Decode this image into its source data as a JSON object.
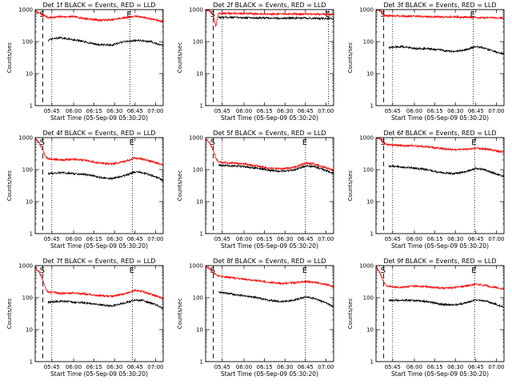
{
  "colors": {
    "events": "#000000",
    "lld": "#ff0000",
    "axis": "#000000"
  },
  "chart_data": [
    {
      "type": "line",
      "title": "Det 1f BLACK = Events, RED = LLD",
      "xlabel": "Start Time (05-Sep-09 05:30:20)",
      "ylabel": "Counts/sec",
      "yscale": "log",
      "ylim": [
        1,
        1000
      ],
      "y_ticks": [
        "1",
        "10",
        "100",
        "1000"
      ],
      "xlim": [
        0,
        100
      ],
      "x_tick_positions": [
        13,
        30,
        46,
        62,
        78,
        94
      ],
      "x_ticks": [
        "05:45",
        "06:00",
        "06:15",
        "06:30",
        "06:45",
        "07:00"
      ],
      "markers": [
        {
          "label": "S",
          "x": 6,
          "style": "dash"
        },
        {
          "label": "E",
          "x": 74,
          "style": "dot"
        }
      ],
      "extra_dotted_x": [
        13
      ],
      "series": [
        {
          "x": [
            0,
            2,
            5,
            8,
            10,
            15,
            20,
            30,
            40,
            50,
            60,
            70,
            80,
            90,
            100
          ],
          "y": [
            900,
            800,
            700,
            650,
            550,
            580,
            600,
            600,
            520,
            470,
            480,
            560,
            620,
            520,
            420
          ]
        },
        {
          "x": [
            10,
            15,
            20,
            30,
            40,
            50,
            60,
            70,
            80,
            90,
            100
          ],
          "y": [
            110,
            125,
            130,
            115,
            95,
            80,
            78,
            100,
            110,
            100,
            75
          ]
        }
      ]
    },
    {
      "type": "line",
      "title": "Det 2f BLACK = Events, RED = LLD",
      "xlabel": "Start Time (05-Sep-09 05:30:20)",
      "ylabel": "Counts/sec",
      "yscale": "log",
      "ylim": [
        1,
        1000
      ],
      "y_ticks": [
        "1",
        "10",
        "100",
        "1000"
      ],
      "xlim": [
        0,
        100
      ],
      "x_tick_positions": [
        13,
        30,
        46,
        62,
        78,
        94
      ],
      "x_ticks": [
        "05:45",
        "06:00",
        "06:15",
        "06:30",
        "06:45",
        "07:00"
      ],
      "markers": [
        {
          "label": "S",
          "x": 6,
          "style": "dash"
        },
        {
          "label": "E",
          "x": 96,
          "style": "dot"
        }
      ],
      "extra_dotted_x": [
        13
      ],
      "series": [
        {
          "x": [
            0,
            3,
            6,
            8,
            10,
            15,
            30,
            50,
            70,
            90,
            100
          ],
          "y": [
            1000,
            900,
            700,
            300,
            760,
            760,
            750,
            720,
            730,
            720,
            700
          ]
        },
        {
          "x": [
            10,
            15,
            30,
            50,
            70,
            90,
            100
          ],
          "y": [
            560,
            580,
            560,
            540,
            540,
            530,
            520
          ]
        }
      ]
    },
    {
      "type": "line",
      "title": "Det 3f BLACK = Events, RED = LLD",
      "xlabel": "Start Time (05-Sep-09 05:30:20)",
      "ylabel": "Counts/sec",
      "yscale": "log",
      "ylim": [
        1,
        1000
      ],
      "y_ticks": [
        "1",
        "10",
        "100",
        "1000"
      ],
      "xlim": [
        0,
        100
      ],
      "x_tick_positions": [
        13,
        30,
        46,
        62,
        78,
        94
      ],
      "x_ticks": [
        "05:45",
        "06:00",
        "06:15",
        "06:30",
        "06:45",
        "07:00"
      ],
      "markers": [
        {
          "label": "S",
          "x": 6,
          "style": "dash"
        },
        {
          "label": "E",
          "x": 76,
          "style": "dot"
        }
      ],
      "extra_dotted_x": [
        13
      ],
      "series": [
        {
          "x": [
            0,
            4,
            6,
            10,
            20,
            40,
            60,
            80,
            100
          ],
          "y": [
            1000,
            900,
            650,
            640,
            630,
            600,
            590,
            560,
            540
          ]
        },
        {
          "x": [
            10,
            20,
            30,
            40,
            50,
            60,
            70,
            78,
            85,
            95,
            100
          ],
          "y": [
            65,
            70,
            62,
            60,
            55,
            48,
            55,
            70,
            62,
            45,
            42
          ]
        }
      ]
    },
    {
      "type": "line",
      "title": "Det 4f BLACK = Events, RED = LLD",
      "xlabel": "Start Time (05-Sep-09 05:30:20)",
      "ylabel": "Counts/sec",
      "yscale": "log",
      "ylim": [
        1,
        1000
      ],
      "y_ticks": [
        "1",
        "10",
        "100",
        "1000"
      ],
      "xlim": [
        0,
        100
      ],
      "x_tick_positions": [
        13,
        30,
        46,
        62,
        78,
        94
      ],
      "x_ticks": [
        "05:45",
        "06:00",
        "06:15",
        "06:30",
        "06:45",
        "07:00"
      ],
      "markers": [
        {
          "label": "S",
          "x": 6,
          "style": "dash"
        },
        {
          "label": "E",
          "x": 76,
          "style": "dot"
        }
      ],
      "extra_dotted_x": [
        13
      ],
      "series": [
        {
          "x": [
            0,
            3,
            6,
            8,
            10,
            20,
            30,
            40,
            50,
            60,
            70,
            78,
            85,
            95,
            100
          ],
          "y": [
            900,
            700,
            400,
            260,
            220,
            200,
            210,
            190,
            160,
            150,
            180,
            230,
            210,
            160,
            140
          ]
        },
        {
          "x": [
            10,
            20,
            30,
            40,
            50,
            60,
            70,
            78,
            85,
            95,
            100
          ],
          "y": [
            75,
            80,
            75,
            70,
            58,
            52,
            65,
            85,
            78,
            58,
            45
          ]
        }
      ]
    },
    {
      "type": "line",
      "title": "Det 5f BLACK = Events, RED = LLD",
      "xlabel": "Start Time (05-Sep-09 05:30:20)",
      "ylabel": "Counts/sec",
      "yscale": "log",
      "ylim": [
        1,
        1000
      ],
      "y_ticks": [
        "1",
        "10",
        "100",
        "1000"
      ],
      "xlim": [
        0,
        100
      ],
      "x_tick_positions": [
        13,
        30,
        46,
        62,
        78,
        94
      ],
      "x_ticks": [
        "05:45",
        "06:00",
        "06:15",
        "06:30",
        "06:45",
        "07:00"
      ],
      "markers": [
        {
          "label": "S",
          "x": 6,
          "style": "dash"
        },
        {
          "label": "E",
          "x": 78,
          "style": "dot"
        }
      ],
      "extra_dotted_x": [
        13
      ],
      "series": [
        {
          "x": [
            0,
            3,
            6,
            8,
            10,
            20,
            30,
            40,
            50,
            60,
            70,
            78,
            85,
            95,
            100
          ],
          "y": [
            900,
            700,
            400,
            220,
            170,
            160,
            150,
            130,
            110,
            105,
            120,
            160,
            150,
            110,
            95
          ]
        },
        {
          "x": [
            10,
            20,
            30,
            40,
            50,
            60,
            70,
            78,
            85,
            95,
            100
          ],
          "y": [
            140,
            130,
            125,
            110,
            95,
            88,
            100,
            130,
            125,
            90,
            75
          ]
        }
      ]
    },
    {
      "type": "line",
      "title": "Det 6f BLACK = Events, RED = LLD",
      "xlabel": "Start Time (05-Sep-09 05:30:20)",
      "ylabel": "Counts/sec",
      "yscale": "log",
      "ylim": [
        1,
        1000
      ],
      "y_ticks": [
        "1",
        "10",
        "100",
        "1000"
      ],
      "xlim": [
        0,
        100
      ],
      "x_tick_positions": [
        13,
        30,
        46,
        62,
        78,
        94
      ],
      "x_ticks": [
        "05:45",
        "06:00",
        "06:15",
        "06:30",
        "06:45",
        "07:00"
      ],
      "markers": [
        {
          "label": "S",
          "x": 6,
          "style": "dash"
        },
        {
          "label": "E",
          "x": 77,
          "style": "dot"
        }
      ],
      "extra_dotted_x": [
        13
      ],
      "series": [
        {
          "x": [
            0,
            4,
            6,
            10,
            20,
            30,
            40,
            50,
            60,
            70,
            78,
            85,
            95,
            100
          ],
          "y": [
            1000,
            900,
            650,
            600,
            560,
            550,
            520,
            460,
            420,
            430,
            470,
            440,
            380,
            350
          ]
        },
        {
          "x": [
            10,
            20,
            30,
            40,
            50,
            60,
            70,
            78,
            85,
            95,
            100
          ],
          "y": [
            130,
            120,
            110,
            100,
            80,
            75,
            85,
            110,
            100,
            70,
            60
          ]
        }
      ]
    },
    {
      "type": "line",
      "title": "Det 7f BLACK = Events, RED = LLD",
      "xlabel": "Start Time (05-Sep-09 05:30:20)",
      "ylabel": "Counts/sec",
      "yscale": "log",
      "ylim": [
        1,
        1000
      ],
      "y_ticks": [
        "1",
        "10",
        "100",
        "1000"
      ],
      "xlim": [
        0,
        100
      ],
      "x_tick_positions": [
        13,
        30,
        46,
        62,
        78,
        94
      ],
      "x_ticks": [
        "05:45",
        "06:00",
        "06:15",
        "06:30",
        "06:45",
        "07:00"
      ],
      "markers": [
        {
          "label": "S",
          "x": 6,
          "style": "dash"
        },
        {
          "label": "E",
          "x": 76,
          "style": "dot"
        }
      ],
      "extra_dotted_x": [
        13
      ],
      "series": [
        {
          "x": [
            0,
            3,
            6,
            8,
            10,
            20,
            30,
            40,
            50,
            60,
            70,
            78,
            85,
            95,
            100
          ],
          "y": [
            900,
            650,
            350,
            200,
            150,
            135,
            140,
            130,
            115,
            110,
            130,
            170,
            150,
            110,
            95
          ]
        },
        {
          "x": [
            10,
            20,
            30,
            40,
            50,
            60,
            70,
            78,
            85,
            95,
            100
          ],
          "y": [
            70,
            78,
            72,
            68,
            60,
            55,
            68,
            85,
            80,
            58,
            45
          ]
        }
      ]
    },
    {
      "type": "line",
      "title": "Det 8f BLACK = Events, RED = LLD",
      "xlabel": "Start Time (05-Sep-09 05:30:20)",
      "ylabel": "Counts/sec",
      "yscale": "log",
      "ylim": [
        1,
        1000
      ],
      "y_ticks": [
        "1",
        "10",
        "100",
        "1000"
      ],
      "xlim": [
        0,
        100
      ],
      "x_tick_positions": [
        13,
        30,
        46,
        62,
        78,
        94
      ],
      "x_ticks": [
        "05:45",
        "06:00",
        "06:15",
        "06:30",
        "06:45",
        "07:00"
      ],
      "markers": [
        {
          "label": "S",
          "x": 6,
          "style": "dash"
        },
        {
          "label": "E",
          "x": 78,
          "style": "dot"
        }
      ],
      "extra_dotted_x": [
        13
      ],
      "series": [
        {
          "x": [
            0,
            3,
            6,
            10,
            20,
            30,
            40,
            50,
            60,
            70,
            78,
            85,
            95,
            100
          ],
          "y": [
            1000,
            800,
            600,
            480,
            420,
            380,
            340,
            300,
            280,
            290,
            320,
            300,
            250,
            220
          ]
        },
        {
          "x": [
            10,
            20,
            30,
            40,
            50,
            60,
            70,
            78,
            85,
            95,
            100
          ],
          "y": [
            150,
            130,
            115,
            100,
            82,
            75,
            85,
            105,
            95,
            65,
            50
          ]
        }
      ]
    },
    {
      "type": "line",
      "title": "Det 9f BLACK = Events, RED = LLD",
      "xlabel": "Start Time (05-Sep-09 05:30:20)",
      "ylabel": "Counts/sec",
      "yscale": "log",
      "ylim": [
        1,
        1000
      ],
      "y_ticks": [
        "1",
        "10",
        "100",
        "1000"
      ],
      "xlim": [
        0,
        100
      ],
      "x_tick_positions": [
        13,
        30,
        46,
        62,
        78,
        94
      ],
      "x_ticks": [
        "05:45",
        "06:00",
        "06:15",
        "06:30",
        "06:45",
        "07:00"
      ],
      "markers": [
        {
          "label": "S",
          "x": 6,
          "style": "dash"
        },
        {
          "label": "E",
          "x": 77,
          "style": "dot"
        }
      ],
      "extra_dotted_x": [
        13
      ],
      "series": [
        {
          "x": [
            0,
            3,
            6,
            8,
            10,
            20,
            30,
            40,
            50,
            60,
            70,
            78,
            85,
            95,
            100
          ],
          "y": [
            900,
            600,
            320,
            240,
            220,
            210,
            230,
            220,
            200,
            200,
            230,
            260,
            240,
            200,
            180
          ]
        },
        {
          "x": [
            10,
            20,
            30,
            40,
            50,
            60,
            70,
            78,
            85,
            95,
            100
          ],
          "y": [
            80,
            85,
            80,
            75,
            62,
            58,
            68,
            85,
            80,
            60,
            50
          ]
        }
      ]
    }
  ]
}
